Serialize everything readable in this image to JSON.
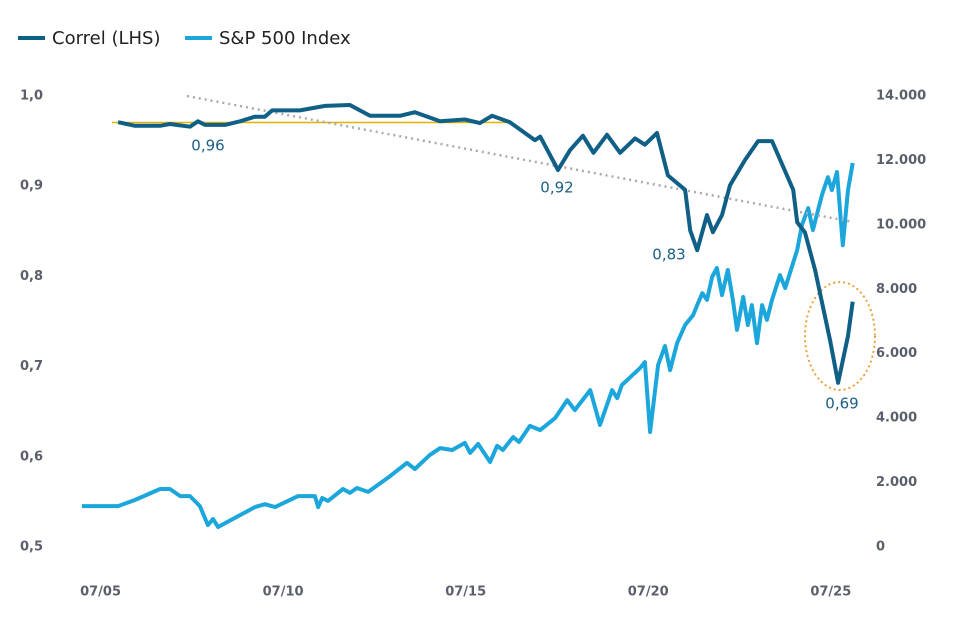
{
  "chart_data": {
    "type": "line",
    "xlim": [
      2004.8,
      2026.3
    ],
    "xticks": [
      {
        "value": 2005.5,
        "label": "07/05"
      },
      {
        "value": 2010.5,
        "label": "07/10"
      },
      {
        "value": 2015.5,
        "label": "07/15"
      },
      {
        "value": 2020.5,
        "label": "07/20"
      },
      {
        "value": 2025.5,
        "label": "07/25"
      }
    ],
    "ylim": [
      0.5,
      1.0
    ],
    "yticks": [
      {
        "value": 0.5,
        "label": "0,5"
      },
      {
        "value": 0.6,
        "label": "0,6"
      },
      {
        "value": 0.7,
        "label": "0,7"
      },
      {
        "value": 0.8,
        "label": "0,8"
      },
      {
        "value": 0.9,
        "label": "0,9"
      },
      {
        "value": 1.0,
        "label": "1,0"
      }
    ],
    "y2lim": [
      0,
      14000
    ],
    "y2ticks": [
      0,
      {
        "value": 2000,
        "label": "2.000"
      },
      {
        "value": 4000,
        "label": "4.000"
      },
      {
        "value": 6000,
        "label": "6.000"
      },
      {
        "value": 8000,
        "label": "8.000"
      },
      {
        "value": 10000,
        "label": "10.000"
      },
      {
        "value": 12000,
        "label": "12.000"
      },
      {
        "value": 14000,
        "label": "14.000"
      }
    ],
    "grid": false,
    "legend": "top-left",
    "series": [
      {
        "name": "Correl (LHS)",
        "color": "#0f5f86",
        "axis": "y",
        "x": [
          2005.98,
          2006.44,
          2007.13,
          2007.4,
          2007.95,
          2008.17,
          2008.36,
          2008.91,
          2009.32,
          2009.73,
          2010.0,
          2010.2,
          2010.96,
          2011.65,
          2012.33,
          2012.88,
          2013.7,
          2014.11,
          2014.8,
          2015.48,
          2015.89,
          2016.22,
          2016.71,
          2017.4,
          2017.54,
          2018.03,
          2018.36,
          2018.71,
          2019.0,
          2019.37,
          2019.73,
          2020.14,
          2020.41,
          2020.74,
          2021.04,
          2021.51,
          2021.65,
          2021.84,
          2022.11,
          2022.27,
          2022.52,
          2022.74,
          2023.15,
          2023.51,
          2023.89,
          2024.47,
          2024.58,
          2024.79,
          2025.07,
          2025.48,
          2025.7,
          2025.97,
          2026.1
        ],
        "values": [
          0.971,
          0.967,
          0.967,
          0.969,
          0.966,
          0.972,
          0.968,
          0.968,
          0.972,
          0.977,
          0.977,
          0.984,
          0.984,
          0.989,
          0.99,
          0.978,
          0.978,
          0.982,
          0.972,
          0.974,
          0.97,
          0.978,
          0.971,
          0.951,
          0.955,
          0.918,
          0.94,
          0.956,
          0.937,
          0.957,
          0.937,
          0.953,
          0.946,
          0.959,
          0.912,
          0.896,
          0.851,
          0.829,
          0.868,
          0.849,
          0.868,
          0.901,
          0.929,
          0.95,
          0.95,
          0.896,
          0.86,
          0.849,
          0.807,
          0.729,
          0.682,
          0.734,
          0.772
        ]
      },
      {
        "name": "S&P 500 Index",
        "color": "#1ba6dc",
        "axis": "y2",
        "x": [
          2004.99,
          2005.98,
          2006.44,
          2007.13,
          2007.4,
          2007.68,
          2007.95,
          2008.22,
          2008.44,
          2008.58,
          2008.72,
          2009.32,
          2009.73,
          2010.0,
          2010.28,
          2010.91,
          2011.37,
          2011.46,
          2011.57,
          2011.73,
          2012.14,
          2012.33,
          2012.52,
          2012.83,
          2013.43,
          2013.89,
          2014.11,
          2014.52,
          2014.8,
          2015.13,
          2015.48,
          2015.62,
          2015.84,
          2016.17,
          2016.36,
          2016.52,
          2016.8,
          2016.96,
          2017.26,
          2017.54,
          2017.95,
          2018.28,
          2018.49,
          2018.91,
          2019.18,
          2019.51,
          2019.65,
          2019.78,
          2020.28,
          2020.41,
          2020.55,
          2020.77,
          2020.96,
          2021.1,
          2021.29,
          2021.51,
          2021.73,
          2021.84,
          2021.98,
          2022.11,
          2022.25,
          2022.38,
          2022.52,
          2022.68,
          2022.82,
          2022.93,
          2023.1,
          2023.23,
          2023.34,
          2023.48,
          2023.62,
          2023.75,
          2023.89,
          2024.11,
          2024.25,
          2024.58,
          2024.71,
          2024.88,
          2025.01,
          2025.26,
          2025.42,
          2025.53,
          2025.67,
          2025.83,
          2025.97,
          2026.1
        ],
        "values": [
          1270,
          1270,
          1460,
          1800,
          1800,
          1580,
          1580,
          1270,
          680,
          870,
          620,
          990,
          1240,
          1330,
          1240,
          1580,
          1580,
          1240,
          1520,
          1430,
          1800,
          1680,
          1830,
          1710,
          2200,
          2610,
          2420,
          2860,
          3070,
          3010,
          3230,
          2920,
          3200,
          2640,
          3140,
          3010,
          3410,
          3260,
          3760,
          3630,
          4000,
          4560,
          4250,
          4870,
          3790,
          4870,
          4620,
          5030,
          5560,
          5740,
          3570,
          5650,
          6240,
          5490,
          6330,
          6890,
          7200,
          7510,
          7880,
          7670,
          8380,
          8660,
          7820,
          8600,
          7670,
          6740,
          7760,
          6890,
          7510,
          6330,
          7510,
          7050,
          7670,
          8440,
          8040,
          9220,
          9990,
          10520,
          9840,
          10930,
          11480,
          11080,
          11640,
          9370,
          11080,
          11920
        ]
      }
    ],
    "annotations": [
      "0,96",
      "0,92",
      "0,83",
      "0,69"
    ]
  }
}
